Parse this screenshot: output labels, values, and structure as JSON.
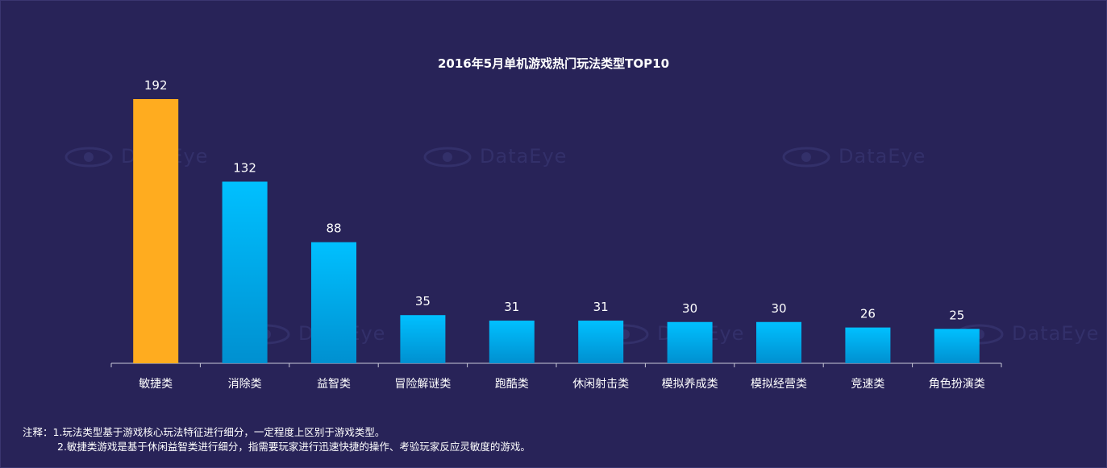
{
  "watermark": {
    "text": "DataEye"
  },
  "notes": {
    "line1": "注释：1.玩法类型基于游戏核心玩法特征进行细分，一定程度上区别于游戏类型。",
    "line2": "2.敏捷类游戏是基于休闲益智类进行细分，指需要玩家进行迅速快捷的操作、考验玩家反应灵敏度的游戏。"
  },
  "colors": {
    "background": "#282358",
    "highlight_bar": "#FFAC1F",
    "bar_top": "#00C0FF",
    "bar_bottom": "#0090D0"
  },
  "chart_data": {
    "type": "bar",
    "title": "2016年5月单机游戏热门玩法类型TOP10",
    "xlabel": "",
    "ylabel": "",
    "categories": [
      "敏捷类",
      "消除类",
      "益智类",
      "冒险解谜类",
      "跑酷类",
      "休闲射击类",
      "模拟养成类",
      "模拟经营类",
      "竞速类",
      "角色扮演类"
    ],
    "values": [
      192,
      132,
      88,
      35,
      31,
      31,
      30,
      30,
      26,
      25
    ],
    "highlight_index": 0,
    "ylim": [
      0,
      200
    ],
    "grid": false,
    "data_labels": true
  }
}
